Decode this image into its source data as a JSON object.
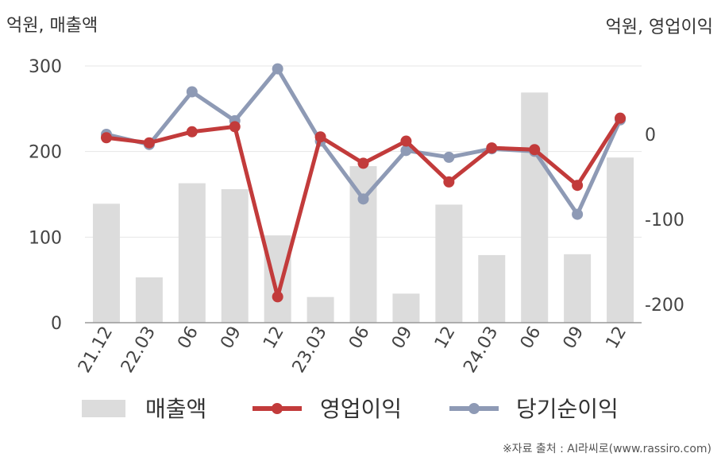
{
  "header": {
    "left_unit": "억원, 매출액",
    "right_unit": "억원, 영업이익"
  },
  "footer": {
    "source": "※자료 출처 : AI라씨로(www.rassiro.com)"
  },
  "chart_data": {
    "type": "bar+line",
    "categories": [
      "21.12",
      "22.03",
      "06",
      "09",
      "12",
      "23.03",
      "06",
      "09",
      "12",
      "24.03",
      "06",
      "09",
      "12"
    ],
    "left_axis": {
      "label": "억원, 매출액",
      "ylim": [
        0,
        300
      ],
      "ticks": [
        0,
        100,
        200,
        300
      ]
    },
    "right_axis": {
      "label": "억원, 영업이익",
      "ylim": [
        -220,
        80
      ],
      "ticks": [
        0,
        -100,
        -200
      ]
    },
    "grid": true,
    "legend_position": "bottom",
    "series": [
      {
        "name": "매출액",
        "kind": "bar",
        "axis": "left",
        "color": "#dcdcdc",
        "values": [
          139,
          53,
          163,
          156,
          102,
          30,
          183,
          34,
          138,
          79,
          269,
          80,
          193
        ]
      },
      {
        "name": "영업이익",
        "kind": "line",
        "axis": "right",
        "color": "#c23b3b",
        "values": [
          -4,
          -10,
          3,
          9,
          -191,
          -3,
          -34,
          -8,
          -56,
          -16,
          -18,
          -60,
          19
        ]
      },
      {
        "name": "당기순이익",
        "kind": "line",
        "axis": "right",
        "color": "#8e9ab5",
        "values": [
          0,
          -12,
          50,
          16,
          77,
          -8,
          -76,
          -19,
          -27,
          -17,
          -20,
          -94,
          17
        ]
      }
    ]
  }
}
